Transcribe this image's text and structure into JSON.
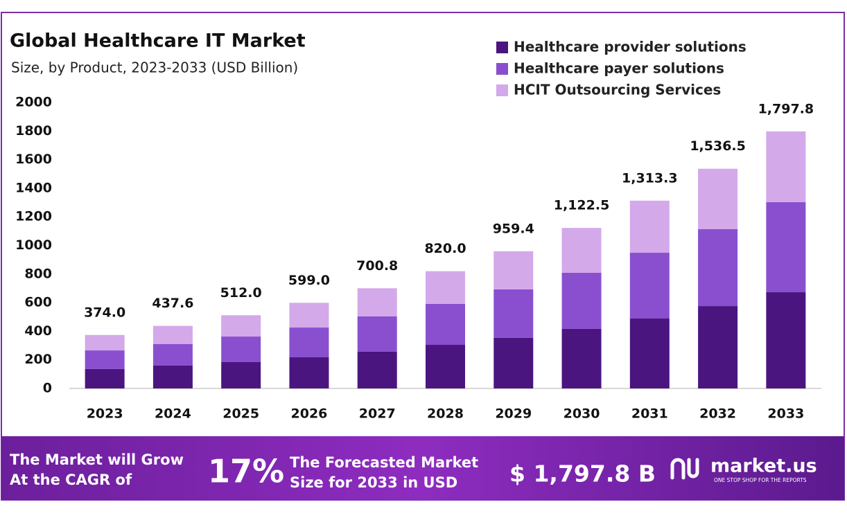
{
  "chart_data": {
    "type": "stacked-bar",
    "title": "Global Healthcare IT Market",
    "subtitle": "Size, by Product, 2023-2033 (USD Billion)",
    "categories": [
      "2023",
      "2024",
      "2025",
      "2026",
      "2027",
      "2028",
      "2029",
      "2030",
      "2031",
      "2032",
      "2033"
    ],
    "series": [
      {
        "name": "Healthcare provider solutions",
        "color": "#4b1580",
        "values": [
          136,
          160,
          184,
          218,
          257,
          305,
          354,
          417,
          489,
          576,
          673
        ]
      },
      {
        "name": "Healthcare payer solutions",
        "color": "#8a4fcf",
        "values": [
          130,
          150,
          179,
          208,
          247,
          286,
          339,
          392,
          460,
          538,
          630
        ]
      },
      {
        "name": "HCIT Outsourcing Services",
        "color": "#d3a9ea",
        "values": [
          108,
          127.6,
          149,
          173,
          196.8,
          229,
          266.4,
          313.5,
          364.3,
          422.5,
          494.8
        ]
      }
    ],
    "totals": {
      "values": [
        374,
        437.6,
        512,
        599,
        700.8,
        820,
        959.4,
        1122.5,
        1313.3,
        1536.5,
        1797.8
      ],
      "value_labels": [
        "374.0",
        "437.6",
        "512.0",
        "599.0",
        "700.8",
        "820.0",
        "959.4",
        "1,122.5",
        "1,313.3",
        "1,536.5",
        "1,797.8"
      ]
    },
    "ylim": [
      0,
      2000
    ],
    "yticks": [
      0,
      200,
      400,
      600,
      800,
      1000,
      1200,
      1400,
      1600,
      1800,
      2000
    ],
    "legend": "top-right"
  },
  "footer": {
    "cagr_text": [
      "The Market will Grow",
      "At the CAGR of"
    ],
    "cagr_value": "17%",
    "forecast_text": [
      "The Forecasted Market",
      "Size for 2033 in USD"
    ],
    "forecast_value": "$ 1,797.8 B",
    "brand": "market.us",
    "tagline": "ONE STOP SHOP FOR THE REPORTS"
  }
}
